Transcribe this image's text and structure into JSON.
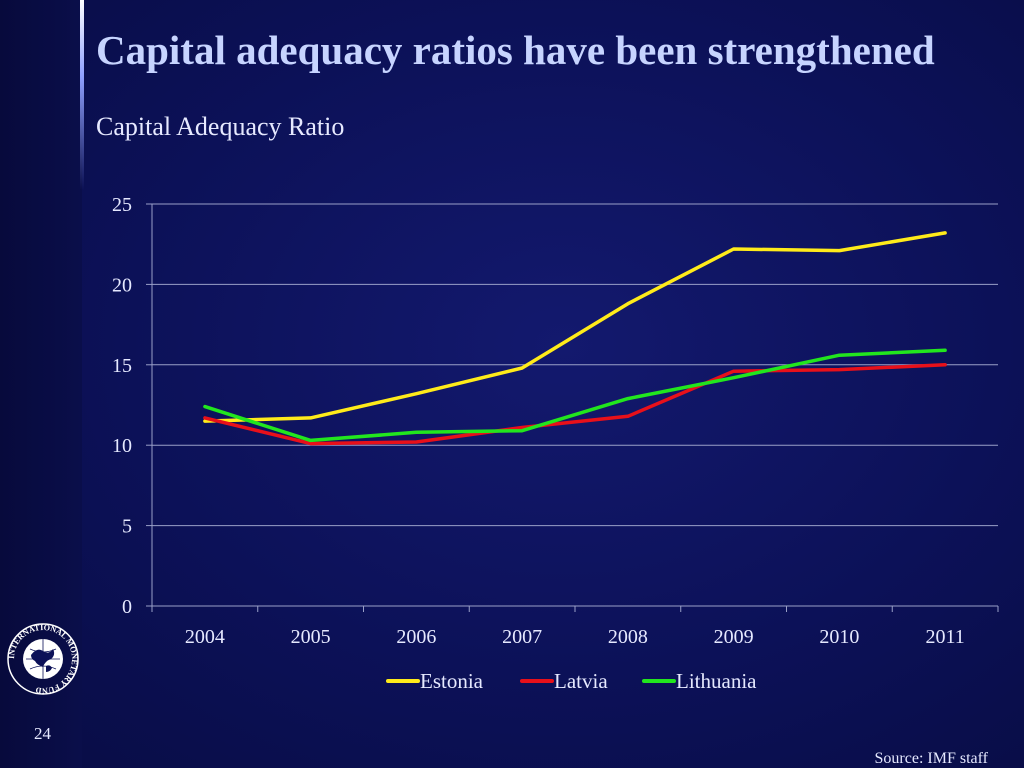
{
  "slide": {
    "title": "Capital adequacy ratios have been strengthened",
    "page_number": "24",
    "source": "Source: IMF staff",
    "logo_text": "INTERNATIONAL MONETARY FUND"
  },
  "colors": {
    "estonia": "#ffeb1a",
    "latvia": "#e8101a",
    "lithuania": "#22e61e",
    "grid": "#9aa0c8",
    "text": "#e6e9ff"
  },
  "chart_data": {
    "type": "line",
    "title": "Capital Adequacy Ratio",
    "xlabel": "",
    "ylabel": "",
    "categories": [
      "2004",
      "2005",
      "2006",
      "2007",
      "2008",
      "2009",
      "2010",
      "2011"
    ],
    "ylim": [
      0,
      25
    ],
    "yticks": [
      0,
      5,
      10,
      15,
      20,
      25
    ],
    "grid": true,
    "legend_position": "bottom",
    "series": [
      {
        "name": "Estonia",
        "values": [
          11.5,
          11.7,
          13.2,
          14.8,
          18.8,
          22.2,
          22.1,
          23.2
        ]
      },
      {
        "name": "Latvia",
        "values": [
          11.7,
          10.1,
          10.2,
          11.1,
          11.8,
          14.6,
          14.7,
          15.0
        ]
      },
      {
        "name": "Lithuania",
        "values": [
          12.4,
          10.3,
          10.8,
          10.9,
          12.9,
          14.2,
          15.6,
          15.9
        ]
      }
    ]
  }
}
